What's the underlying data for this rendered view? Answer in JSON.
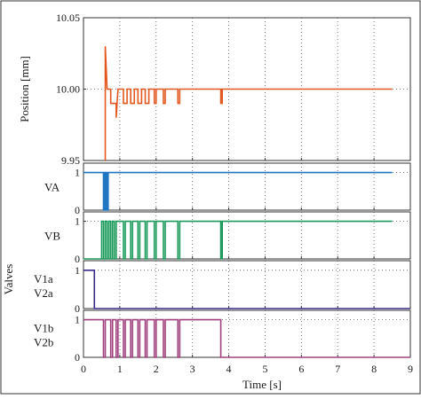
{
  "figure": {
    "ylabel_shared": "Valves",
    "xlabel": "Time  [s]",
    "x_ticks": [
      "0",
      "1",
      "2",
      "3",
      "4",
      "5",
      "6",
      "7",
      "8",
      "9"
    ]
  },
  "chart_data": [
    {
      "type": "line",
      "ylabel": "Position  [mm]",
      "ylim": [
        9.95,
        10.05
      ],
      "xlim": [
        0,
        9
      ],
      "y_ticks": [
        {
          "value": 10.05,
          "label": "10.05"
        },
        {
          "value": 10.0,
          "label": "10.00"
        },
        {
          "value": 9.95,
          "label": "9.95"
        }
      ],
      "grid": true,
      "series": [
        {
          "color": "#e2571e",
          "points": [
            [
              0.6,
              9.95
            ],
            [
              0.6,
              10.03
            ],
            [
              0.65,
              10.0
            ],
            [
              0.75,
              10.0
            ],
            [
              0.75,
              9.99
            ],
            [
              0.9,
              9.99
            ],
            [
              0.9,
              9.98
            ],
            [
              0.95,
              10.0
            ],
            [
              1.1,
              10.0
            ],
            [
              1.1,
              9.99
            ],
            [
              1.2,
              9.99
            ],
            [
              1.2,
              10.0
            ],
            [
              1.3,
              10.0
            ],
            [
              1.3,
              9.99
            ],
            [
              1.4,
              9.99
            ],
            [
              1.4,
              10.0
            ],
            [
              1.5,
              10.0
            ],
            [
              1.5,
              9.99
            ],
            [
              1.6,
              9.99
            ],
            [
              1.6,
              10.0
            ],
            [
              1.7,
              10.0
            ],
            [
              1.7,
              9.99
            ],
            [
              1.8,
              9.99
            ],
            [
              1.8,
              10.0
            ],
            [
              1.95,
              10.0
            ],
            [
              1.95,
              9.99
            ],
            [
              2.0,
              9.99
            ],
            [
              2.0,
              10.0
            ],
            [
              2.2,
              10.0
            ],
            [
              2.2,
              9.99
            ],
            [
              2.25,
              9.99
            ],
            [
              2.25,
              10.0
            ],
            [
              2.6,
              10.0
            ],
            [
              2.6,
              9.99
            ],
            [
              2.65,
              9.99
            ],
            [
              2.65,
              10.0
            ],
            [
              3.78,
              10.0
            ],
            [
              3.78,
              9.99
            ],
            [
              3.82,
              9.99
            ],
            [
              3.82,
              10.0
            ],
            [
              8.5,
              10.0
            ]
          ]
        }
      ]
    },
    {
      "type": "line",
      "ylabel": "VA",
      "ylim": [
        0,
        1.25
      ],
      "xlim": [
        0,
        9
      ],
      "y_ticks": [
        {
          "value": 1,
          "label": "1"
        },
        {
          "value": 0,
          "label": "0"
        }
      ],
      "grid": true,
      "series": [
        {
          "color": "#1f77c4",
          "points": [
            [
              0,
              1
            ],
            [
              0.55,
              1
            ],
            [
              0.55,
              0
            ],
            [
              0.58,
              0
            ],
            [
              0.58,
              1
            ],
            [
              0.6,
              1
            ],
            [
              0.6,
              0
            ],
            [
              0.63,
              0
            ],
            [
              0.63,
              1
            ],
            [
              0.65,
              1
            ],
            [
              0.65,
              0
            ],
            [
              0.68,
              0
            ],
            [
              0.68,
              1
            ],
            [
              8.5,
              1
            ]
          ]
        }
      ]
    },
    {
      "type": "line",
      "ylabel": "VB",
      "ylim": [
        0,
        1.25
      ],
      "xlim": [
        0,
        9
      ],
      "y_ticks": [
        {
          "value": 1,
          "label": "1"
        },
        {
          "value": 0,
          "label": "0"
        }
      ],
      "grid": true,
      "series": [
        {
          "color": "#1a9a5a",
          "points": [
            [
              0,
              0
            ],
            [
              0.5,
              0
            ],
            [
              0.5,
              1
            ],
            [
              0.55,
              1
            ],
            [
              0.55,
              0
            ],
            [
              0.6,
              0
            ],
            [
              0.6,
              1
            ],
            [
              0.65,
              1
            ],
            [
              0.65,
              0
            ],
            [
              0.7,
              0
            ],
            [
              0.7,
              1
            ],
            [
              0.75,
              1
            ],
            [
              0.75,
              0
            ],
            [
              0.8,
              0
            ],
            [
              0.8,
              1
            ],
            [
              0.85,
              1
            ],
            [
              0.85,
              0
            ],
            [
              0.9,
              0
            ],
            [
              0.9,
              1
            ],
            [
              1.1,
              1
            ],
            [
              1.1,
              0
            ],
            [
              1.15,
              0
            ],
            [
              1.15,
              1
            ],
            [
              1.3,
              1
            ],
            [
              1.3,
              0
            ],
            [
              1.35,
              0
            ],
            [
              1.35,
              1
            ],
            [
              1.5,
              1
            ],
            [
              1.5,
              0
            ],
            [
              1.55,
              0
            ],
            [
              1.55,
              1
            ],
            [
              1.7,
              1
            ],
            [
              1.7,
              0
            ],
            [
              1.75,
              0
            ],
            [
              1.75,
              1
            ],
            [
              1.95,
              1
            ],
            [
              1.95,
              0
            ],
            [
              2.0,
              0
            ],
            [
              2.0,
              1
            ],
            [
              2.2,
              1
            ],
            [
              2.2,
              0
            ],
            [
              2.25,
              0
            ],
            [
              2.25,
              1
            ],
            [
              2.6,
              1
            ],
            [
              2.6,
              0
            ],
            [
              2.65,
              0
            ],
            [
              2.65,
              1
            ],
            [
              3.78,
              1
            ],
            [
              3.78,
              0
            ],
            [
              3.82,
              0
            ],
            [
              3.82,
              1
            ],
            [
              8.5,
              1
            ]
          ]
        }
      ]
    },
    {
      "type": "line",
      "ylabel": [
        "V1a",
        "V2a"
      ],
      "ylim": [
        0,
        1.25
      ],
      "xlim": [
        0,
        9
      ],
      "y_ticks": [
        {
          "value": 1,
          "label": "1"
        },
        {
          "value": 0,
          "label": "0"
        }
      ],
      "grid": true,
      "series": [
        {
          "color": "#3a2a8c",
          "points": [
            [
              0,
              1
            ],
            [
              0.3,
              1
            ],
            [
              0.3,
              0
            ],
            [
              9,
              0
            ]
          ]
        }
      ]
    },
    {
      "type": "line",
      "ylabel": [
        "V1b",
        "V2b"
      ],
      "ylim": [
        0,
        1.25
      ],
      "xlim": [
        0,
        9
      ],
      "y_ticks": [
        {
          "value": 1,
          "label": "1"
        },
        {
          "value": 0,
          "label": "0"
        }
      ],
      "grid": true,
      "series": [
        {
          "color": "#a0407c",
          "points": [
            [
              0,
              1
            ],
            [
              0.55,
              1
            ],
            [
              0.55,
              0
            ],
            [
              0.6,
              0
            ],
            [
              0.6,
              1
            ],
            [
              0.75,
              1
            ],
            [
              0.75,
              0
            ],
            [
              0.8,
              0
            ],
            [
              0.8,
              1
            ],
            [
              0.9,
              1
            ],
            [
              0.9,
              0
            ],
            [
              0.95,
              0
            ],
            [
              0.95,
              1
            ],
            [
              1.1,
              1
            ],
            [
              1.1,
              0
            ],
            [
              1.15,
              0
            ],
            [
              1.15,
              1
            ],
            [
              1.3,
              1
            ],
            [
              1.3,
              0
            ],
            [
              1.35,
              0
            ],
            [
              1.35,
              1
            ],
            [
              1.5,
              1
            ],
            [
              1.5,
              0
            ],
            [
              1.55,
              0
            ],
            [
              1.55,
              1
            ],
            [
              1.7,
              1
            ],
            [
              1.7,
              0
            ],
            [
              1.75,
              0
            ],
            [
              1.75,
              1
            ],
            [
              1.95,
              1
            ],
            [
              1.95,
              0
            ],
            [
              2.0,
              0
            ],
            [
              2.0,
              1
            ],
            [
              2.2,
              1
            ],
            [
              2.2,
              0
            ],
            [
              2.25,
              0
            ],
            [
              2.25,
              1
            ],
            [
              2.6,
              1
            ],
            [
              2.6,
              0
            ],
            [
              2.65,
              0
            ],
            [
              2.65,
              1
            ],
            [
              3.78,
              1
            ],
            [
              3.78,
              0
            ],
            [
              3.82,
              0
            ],
            [
              3.82,
              0
            ],
            [
              9,
              0
            ]
          ]
        }
      ]
    }
  ]
}
